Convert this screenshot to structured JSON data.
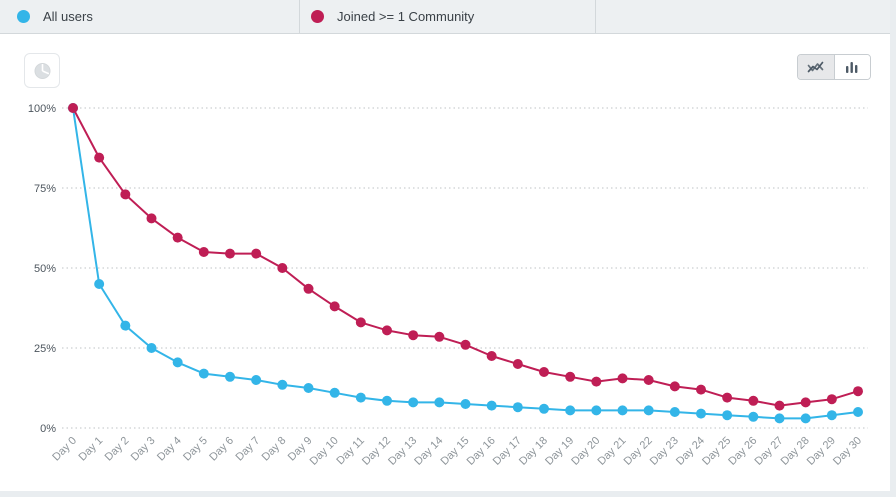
{
  "legend_tabs": [
    {
      "label": "All users",
      "color": "#33b5e8"
    },
    {
      "label": "Joined >= 1 Community",
      "color": "#bf1e55"
    }
  ],
  "toolbar": {
    "left_button_icon": "pie-chart-icon",
    "chart_type_options": [
      {
        "icon": "line-chart-icon",
        "selected": true
      },
      {
        "icon": "bar-chart-icon",
        "selected": false
      }
    ]
  },
  "chart_data": {
    "type": "line",
    "title": "",
    "x": [
      "Day 0",
      "Day 1",
      "Day 2",
      "Day 3",
      "Day 4",
      "Day 5",
      "Day 6",
      "Day 7",
      "Day 8",
      "Day 9",
      "Day 10",
      "Day 11",
      "Day 12",
      "Day 13",
      "Day 14",
      "Day 15",
      "Day 16",
      "Day 17",
      "Day 18",
      "Day 19",
      "Day 20",
      "Day 21",
      "Day 22",
      "Day 23",
      "Day 24",
      "Day 25",
      "Day 26",
      "Day 27",
      "Day 28",
      "Day 29",
      "Day 30"
    ],
    "series": [
      {
        "name": "All users",
        "color": "#33b5e8",
        "values": [
          100,
          45,
          32,
          25,
          20.5,
          17,
          16,
          15,
          13.5,
          12.5,
          11,
          9.5,
          8.5,
          8,
          8,
          7.5,
          7,
          6.5,
          6,
          5.5,
          5.5,
          5.5,
          5.5,
          5,
          4.5,
          4,
          3.5,
          3,
          3,
          4,
          5
        ]
      },
      {
        "name": "Joined >= 1 Community",
        "color": "#bf1e55",
        "values": [
          100,
          84.5,
          73,
          65.5,
          59.5,
          55,
          54.5,
          54.5,
          50,
          43.5,
          38,
          33,
          30.5,
          29,
          28.5,
          26,
          22.5,
          20,
          17.5,
          16,
          14.5,
          15.5,
          15,
          13,
          12,
          9.5,
          8.5,
          7,
          8,
          9,
          11.5
        ]
      }
    ],
    "y_ticks": [
      {
        "value": 0,
        "label": "0%"
      },
      {
        "value": 25,
        "label": "25%"
      },
      {
        "value": 50,
        "label": "50%"
      },
      {
        "value": 75,
        "label": "75%"
      },
      {
        "value": 100,
        "label": "100%"
      }
    ],
    "ylim": [
      0,
      100
    ],
    "xlabel": "",
    "ylabel": "",
    "grid": "dotted-horizontal",
    "legend_position": "top-tabs"
  }
}
